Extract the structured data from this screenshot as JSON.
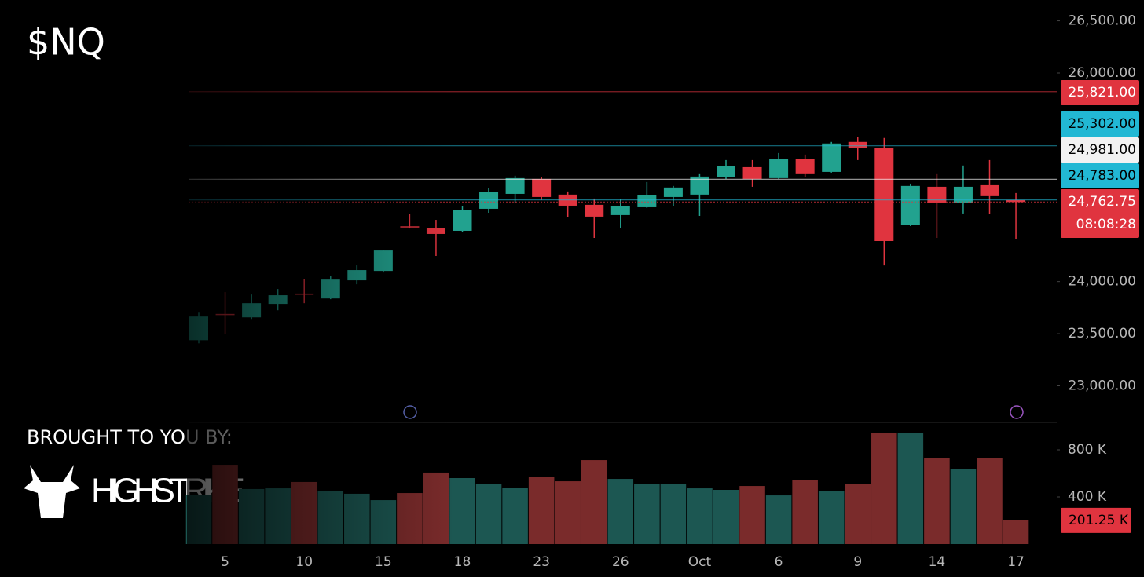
{
  "chart_data": {
    "type": "candlestick",
    "title": "$NQ",
    "sponsor": {
      "caption": "BROUGHT TO YOU BY:",
      "name": "HIGHSTRIKE"
    },
    "categories": [
      null,
      "5",
      null,
      null,
      "10",
      null,
      null,
      "15",
      null,
      null,
      "18",
      null,
      null,
      "23",
      null,
      null,
      "26",
      null,
      null,
      "Oct",
      null,
      null,
      "6",
      null,
      null,
      "9",
      null,
      null,
      "14",
      null,
      null,
      "17"
    ],
    "open": [
      23438,
      23690,
      23657,
      23786,
      23885,
      23838,
      24012,
      24102,
      24530,
      24515,
      24487,
      24698,
      24841,
      24984,
      24834,
      24736,
      24638,
      24713,
      24811,
      24834,
      24999,
      25097,
      24992,
      25173,
      25052,
      25339,
      25279,
      24540,
      24909,
      24751,
      24924,
      24781
    ],
    "high": [
      23702,
      23899,
      23876,
      23929,
      24027,
      24050,
      24155,
      24306,
      24645,
      24592,
      24721,
      24894,
      25015,
      24999,
      24864,
      24796,
      24788,
      24954,
      24917,
      25030,
      25165,
      25165,
      25233,
      25218,
      25339,
      25384,
      25377,
      24939,
      25030,
      25113,
      25165,
      24849
    ],
    "low": [
      23408,
      23499,
      23642,
      23725,
      23793,
      23831,
      23974,
      24087,
      24509,
      24246,
      24479,
      24660,
      24758,
      24781,
      24615,
      24419,
      24517,
      24706,
      24721,
      24630,
      24984,
      24909,
      24984,
      24999,
      25045,
      25165,
      24155,
      24532,
      24419,
      24653,
      24645,
      24411
    ],
    "close": [
      23665,
      23685,
      23793,
      23869,
      23876,
      24019,
      24110,
      24298,
      24523,
      24457,
      24690,
      24856,
      24992,
      24811,
      24728,
      24623,
      24721,
      24826,
      24902,
      25007,
      25105,
      24984,
      25173,
      25030,
      25324,
      25279,
      24389,
      24917,
      24758,
      24909,
      24819,
      24762.75
    ],
    "up_color": "#22a28f",
    "down_color": "#e0343f",
    "ylim": [
      22650,
      26700
    ],
    "yticks": [
      {
        "value": 26500,
        "label": "26,500.00"
      },
      {
        "value": 26000,
        "label": "26,000.00"
      },
      {
        "value": 24000,
        "label": "24,000.00"
      },
      {
        "value": 23500,
        "label": "23,500.00"
      },
      {
        "value": 23000,
        "label": "23,000.00"
      }
    ],
    "levels": [
      {
        "value": 25821,
        "label": "25,821.00",
        "color": "#e0343f"
      },
      {
        "value": 25302,
        "label": "25,302.00",
        "color": "#22b8d4"
      },
      {
        "value": 24981,
        "label": "24,981.00",
        "color": "#f2f2f2"
      },
      {
        "value": 24783,
        "label": "24,783.00",
        "color": "#22b8d4"
      },
      {
        "value": 24762.75,
        "label": "24,762.75",
        "color": "#e0343f"
      }
    ],
    "countdown": "08:08:28",
    "volume": {
      "values": [
        420000,
        673000,
        467000,
        473000,
        527000,
        447000,
        427000,
        373000,
        433000,
        607000,
        560000,
        507000,
        480000,
        567000,
        533000,
        713000,
        553000,
        513000,
        513000,
        473000,
        460000,
        493000,
        413000,
        540000,
        453000,
        507000,
        940000,
        940000,
        733000,
        640000,
        733000,
        201250
      ],
      "value_labels": [
        null,
        null,
        null,
        null,
        null,
        null,
        null,
        null,
        null,
        null,
        null,
        null,
        null,
        null,
        null,
        null,
        null,
        null,
        null,
        null,
        null,
        null,
        null,
        null,
        null,
        null,
        null,
        null,
        null,
        null,
        null,
        "201.25 K"
      ],
      "up_color": "#1c5752",
      "down_color": "#7a2b2b",
      "ylim": [
        0,
        1020000
      ],
      "yticks": [
        {
          "value": 800000,
          "label": "800 K"
        },
        {
          "value": 400000,
          "label": "400 K"
        }
      ]
    }
  }
}
